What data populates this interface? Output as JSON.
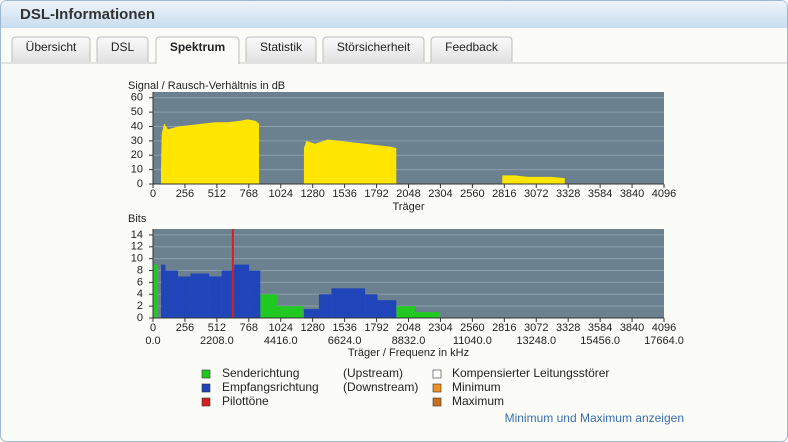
{
  "header": {
    "title": "DSL-Informationen"
  },
  "tabs": [
    "Übersicht",
    "DSL",
    "Spektrum",
    "Statistik",
    "Störsicherheit",
    "Feedback"
  ],
  "active_tab": 2,
  "chart_data": [
    {
      "type": "area",
      "title": "Signal / Rausch-Verhältnis in dB",
      "xlabel": "Träger",
      "xlim": [
        0,
        4096
      ],
      "xticks": [
        0,
        256,
        512,
        768,
        1024,
        1280,
        1536,
        1792,
        2048,
        2304,
        2560,
        2816,
        3072,
        3328,
        3584,
        3840,
        4096
      ],
      "ylim": [
        0,
        64
      ],
      "yticks": [
        0,
        10,
        20,
        30,
        40,
        50,
        60
      ],
      "grid": true,
      "background": "#6c8190",
      "series": [
        {
          "name": "Signal / Rausch-Verhältnis",
          "color": "#ffe600",
          "x": [
            64,
            70,
            90,
            120,
            200,
            300,
            400,
            500,
            600,
            700,
            760,
            820,
            850,
            1000,
            1210,
            1230,
            1300,
            1400,
            1500,
            1600,
            1700,
            1800,
            1900,
            1950,
            2400,
            2800,
            2900,
            3000,
            3100,
            3200,
            3300
          ],
          "values": [
            10,
            35,
            42,
            38,
            40,
            41,
            42,
            43,
            43,
            44,
            45,
            44,
            42,
            null,
            25,
            30,
            28,
            31,
            30,
            29,
            28,
            27,
            26,
            25,
            null,
            6,
            6,
            5,
            5,
            5,
            4
          ]
        }
      ]
    },
    {
      "type": "step",
      "ylabel": "Bits",
      "xlabel": "Träger / Frequenz in kHz",
      "xlim": [
        0,
        4096
      ],
      "xticks": [
        0,
        256,
        512,
        768,
        1024,
        1280,
        1536,
        1792,
        2048,
        2304,
        2560,
        2816,
        3072,
        3328,
        3584,
        3840,
        4096
      ],
      "x2lim": [
        0,
        17664
      ],
      "x2ticks": [
        {
          "value": 0,
          "label": "0.0"
        },
        {
          "value": 2208,
          "label": "2208.0"
        },
        {
          "value": 4416,
          "label": "4416.0"
        },
        {
          "value": 6624,
          "label": "6624.0"
        },
        {
          "value": 8832,
          "label": "8832.0"
        },
        {
          "value": 11040,
          "label": "11040.0"
        },
        {
          "value": 13248,
          "label": "13248.0"
        },
        {
          "value": 15456,
          "label": "15456.0"
        },
        {
          "value": 17664,
          "label": "17664.0"
        }
      ],
      "ylim": [
        0,
        15
      ],
      "yticks": [
        0,
        2,
        4,
        6,
        8,
        10,
        12,
        14
      ],
      "grid": true,
      "background": "#6c8190",
      "series": [
        {
          "name": "Senderichtung",
          "direction": "(Upstream)",
          "color": "#22c822",
          "x": [
            0,
            40,
            860,
            1000,
            1200,
            1950,
            2100,
            2300
          ],
          "values": [
            9,
            null,
            4,
            2,
            null,
            2,
            1,
            null
          ]
        },
        {
          "name": "Empfangsrichtung",
          "direction": "(Downstream)",
          "color": "#1f45b8",
          "x": [
            64,
            100,
            200,
            300,
            450,
            550,
            650,
            770,
            860,
            1210,
            1330,
            1430,
            1700,
            1800,
            1950
          ],
          "values": [
            9,
            8,
            7,
            7.5,
            7,
            8,
            9,
            8,
            null,
            1.5,
            4,
            5,
            4,
            3,
            null
          ]
        },
        {
          "name": "Pilottöne",
          "color": "#d42020",
          "mark": "vline",
          "x": [
            640
          ],
          "values": [
            15
          ]
        }
      ]
    }
  ],
  "legend_extra": [
    {
      "name": "Kompensierter Leitungsstörer",
      "color": "#ffffff"
    },
    {
      "name": "Minimum",
      "color": "#f09020"
    },
    {
      "name": "Maximum",
      "color": "#c87020"
    }
  ],
  "link": "Minimum und Maximum anzeigen"
}
